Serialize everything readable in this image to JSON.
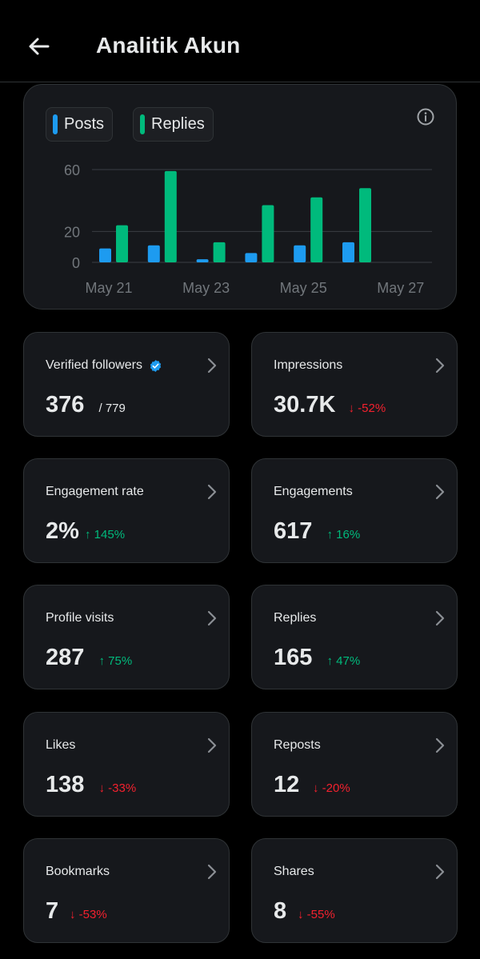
{
  "header": {
    "title": "Analitik Akun",
    "back_icon": "arrow-left-icon"
  },
  "legend": [
    {
      "label": "Posts",
      "color": "#1d9bf0"
    },
    {
      "label": "Replies",
      "color": "#00ba7c"
    }
  ],
  "chart_data": {
    "type": "bar",
    "categories": [
      "May 21",
      "May 22",
      "May 23",
      "May 24",
      "May 25",
      "May 26",
      "May 27"
    ],
    "x_tick_labels": [
      "May 21",
      "May 23",
      "May 25",
      "May 27"
    ],
    "y_tick_labels": [
      "60",
      "20",
      "0"
    ],
    "ylim": [
      0,
      60
    ],
    "grid": true,
    "legend_position": "top-left",
    "series": [
      {
        "name": "Posts",
        "color": "#1d9bf0",
        "values": [
          9,
          11,
          2,
          6,
          11,
          13,
          0
        ]
      },
      {
        "name": "Replies",
        "color": "#00ba7c",
        "values": [
          24,
          59,
          13,
          37,
          42,
          48,
          0
        ]
      }
    ]
  },
  "stats": [
    {
      "label": "Verified followers",
      "value": "376",
      "sub": "/ 779",
      "trend": "neutral",
      "verified": true
    },
    {
      "label": "Impressions",
      "value": "30.7K",
      "sub": "↓ -52%",
      "trend": "down"
    },
    {
      "label": "Engagement rate",
      "value": "2%",
      "sub": "↑ 145%",
      "trend": "up"
    },
    {
      "label": "Engagements",
      "value": "617",
      "sub": "↑ 16%",
      "trend": "up"
    },
    {
      "label": "Profile visits",
      "value": "287",
      "sub": "↑ 75%",
      "trend": "up"
    },
    {
      "label": "Replies",
      "value": "165",
      "sub": "↑ 47%",
      "trend": "up"
    },
    {
      "label": "Likes",
      "value": "138",
      "sub": "↓ -33%",
      "trend": "down"
    },
    {
      "label": "Reposts",
      "value": "12",
      "sub": "↓ -20%",
      "trend": "down"
    },
    {
      "label": "Bookmarks",
      "value": "7",
      "sub": "↓ -53%",
      "trend": "down"
    },
    {
      "label": "Shares",
      "value": "8",
      "sub": "↓ -55%",
      "trend": "down"
    }
  ]
}
